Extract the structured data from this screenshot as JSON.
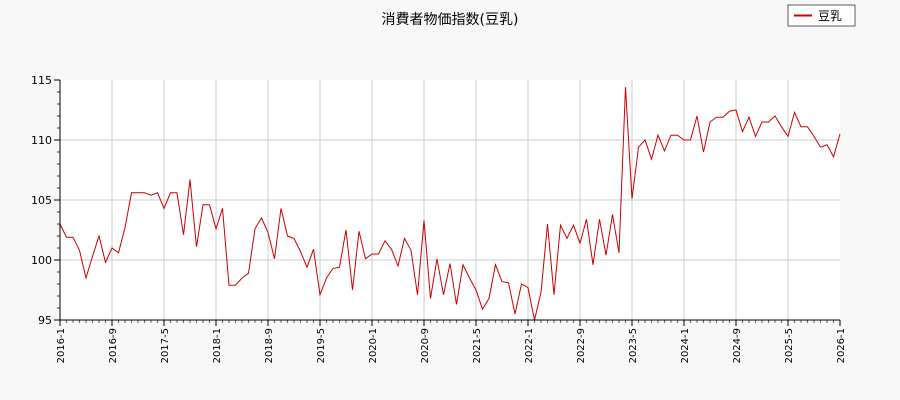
{
  "chart_data": {
    "type": "line",
    "title": "消費者物価指数(豆乳)",
    "xlabel": "",
    "ylabel": "",
    "ylim": [
      95,
      115
    ],
    "yticks": [
      95,
      100,
      105,
      110,
      115
    ],
    "x_start": "2016-1",
    "x_end": "2026-1",
    "xticks": [
      "2016-1",
      "2016-9",
      "2017-5",
      "2018-1",
      "2018-9",
      "2019-5",
      "2020-1",
      "2020-9",
      "2021-5",
      "2022-1",
      "2022-9",
      "2023-5",
      "2024-1",
      "2024-9",
      "2025-5",
      "2026-1"
    ],
    "grid": true,
    "legend_position": "top-right",
    "series": [
      {
        "name": "豆乳",
        "color": "#cc0000",
        "values": [
          103.0,
          101.9,
          101.9,
          100.8,
          98.5,
          100.3,
          102.0,
          99.8,
          101.0,
          100.6,
          102.7,
          105.6,
          105.6,
          105.6,
          105.4,
          105.6,
          104.3,
          105.6,
          105.6,
          102.1,
          106.7,
          101.1,
          104.6,
          104.6,
          102.6,
          104.3,
          97.9,
          97.9,
          98.5,
          98.9,
          102.6,
          103.5,
          102.3,
          100.1,
          104.3,
          102.0,
          101.8,
          100.7,
          99.4,
          100.9,
          97.1,
          98.5,
          99.3,
          99.4,
          102.5,
          97.5,
          102.4,
          100.1,
          100.5,
          100.5,
          101.6,
          100.9,
          99.5,
          101.8,
          100.8,
          97.1,
          103.3,
          96.8,
          100.1,
          97.1,
          99.7,
          96.3,
          99.6,
          98.5,
          97.5,
          95.9,
          96.8,
          99.6,
          98.2,
          98.1,
          95.5,
          98.0,
          97.7,
          95.0,
          97.3,
          103.0,
          97.1,
          102.9,
          101.8,
          102.9,
          101.4,
          103.4,
          99.6,
          103.4,
          100.4,
          103.8,
          100.6,
          114.4,
          105.1,
          109.4,
          110.0,
          108.4,
          110.4,
          109.1,
          110.4,
          110.4,
          110.0,
          110.0,
          112.0,
          109.0,
          111.5,
          111.9,
          111.9,
          112.4,
          112.5,
          110.7,
          111.9,
          110.3,
          111.5,
          111.5,
          112.0,
          111.1,
          110.3,
          112.3,
          111.1,
          111.1,
          110.3,
          109.4,
          109.6,
          108.6,
          110.5
        ]
      }
    ]
  }
}
